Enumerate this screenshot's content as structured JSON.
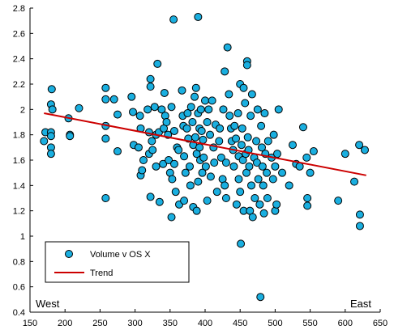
{
  "chart_data": {
    "type": "scatter",
    "x_range": [
      150,
      650
    ],
    "y_range": [
      0.4,
      2.8
    ],
    "x_ticks": [
      150,
      200,
      250,
      300,
      350,
      400,
      450,
      500,
      550,
      600,
      650
    ],
    "y_ticks": [
      0.4,
      0.6,
      0.8,
      1,
      1.2,
      1.4,
      1.6,
      1.8,
      2,
      2.2,
      2.4,
      2.6,
      2.8
    ],
    "grid": false,
    "legend_position": "bottom-left",
    "annotations": [
      {
        "text": "West",
        "position": "bottom-left"
      },
      {
        "text": "East",
        "position": "bottom-right"
      }
    ],
    "colors": {
      "points": "#1aafe0",
      "point_outline": "#000000",
      "trend": "#cc0000"
    },
    "series": [
      {
        "name": "Volume v OS X",
        "points": [
          [
            170,
            1.75
          ],
          [
            172,
            1.82
          ],
          [
            180,
            1.82
          ],
          [
            180,
            1.79
          ],
          [
            180,
            1.7
          ],
          [
            180,
            1.65
          ],
          [
            180,
            2.04
          ],
          [
            181,
            2.16
          ],
          [
            182,
            2.0
          ],
          [
            205,
            1.93
          ],
          [
            207,
            1.8
          ],
          [
            207,
            1.79
          ],
          [
            220,
            2.01
          ],
          [
            258,
            2.17
          ],
          [
            258,
            2.08
          ],
          [
            258,
            1.87
          ],
          [
            258,
            1.77
          ],
          [
            258,
            1.3
          ],
          [
            270,
            2.08
          ],
          [
            275,
            1.96
          ],
          [
            275,
            1.67
          ],
          [
            295,
            2.1
          ],
          [
            297,
            1.98
          ],
          [
            298,
            1.72
          ],
          [
            305,
            1.7
          ],
          [
            307,
            1.95
          ],
          [
            308,
            1.85
          ],
          [
            308,
            1.48
          ],
          [
            310,
            1.52
          ],
          [
            312,
            1.6
          ],
          [
            318,
            2.0
          ],
          [
            320,
            1.82
          ],
          [
            320,
            1.65
          ],
          [
            322,
            2.24
          ],
          [
            322,
            2.18
          ],
          [
            322,
            1.31
          ],
          [
            324,
            1.75
          ],
          [
            325,
            1.68
          ],
          [
            328,
            2.02
          ],
          [
            330,
            1.8
          ],
          [
            330,
            1.55
          ],
          [
            332,
            2.36
          ],
          [
            334,
            1.82
          ],
          [
            335,
            1.27
          ],
          [
            338,
            2.0
          ],
          [
            340,
            1.57
          ],
          [
            341,
            1.85
          ],
          [
            342,
            2.13
          ],
          [
            343,
            1.95
          ],
          [
            345,
            1.9
          ],
          [
            347,
            1.8
          ],
          [
            348,
            1.6
          ],
          [
            350,
            1.5
          ],
          [
            352,
            1.15
          ],
          [
            352,
            2.02
          ],
          [
            353,
            1.45
          ],
          [
            355,
            2.71
          ],
          [
            356,
            1.83
          ],
          [
            356,
            1.57
          ],
          [
            358,
            1.35
          ],
          [
            360,
            1.7
          ],
          [
            362,
            1.68
          ],
          [
            363,
            1.25
          ],
          [
            367,
            2.15
          ],
          [
            368,
            1.95
          ],
          [
            369,
            1.87
          ],
          [
            370,
            1.63
          ],
          [
            370,
            1.28
          ],
          [
            372,
            1.5
          ],
          [
            374,
            1.85
          ],
          [
            375,
            1.97
          ],
          [
            376,
            1.77
          ],
          [
            378,
            1.55
          ],
          [
            379,
            1.4
          ],
          [
            380,
            2.02
          ],
          [
            382,
            1.9
          ],
          [
            383,
            1.72
          ],
          [
            383,
            1.23
          ],
          [
            385,
            2.1
          ],
          [
            386,
            1.78
          ],
          [
            387,
            2.17
          ],
          [
            388,
            1.65
          ],
          [
            388,
            1.2
          ],
          [
            390,
            2.73
          ],
          [
            390,
            1.97
          ],
          [
            390,
            1.43
          ],
          [
            392,
            1.85
          ],
          [
            392,
            1.7
          ],
          [
            393,
            1.6
          ],
          [
            394,
            2.0
          ],
          [
            395,
            1.83
          ],
          [
            396,
            1.5
          ],
          [
            397,
            1.76
          ],
          [
            398,
            1.62
          ],
          [
            400,
            2.07
          ],
          [
            401,
            1.55
          ],
          [
            403,
            1.9
          ],
          [
            403,
            1.28
          ],
          [
            405,
            2.0
          ],
          [
            407,
            1.8
          ],
          [
            408,
            1.47
          ],
          [
            410,
            2.07
          ],
          [
            412,
            1.7
          ],
          [
            413,
            1.58
          ],
          [
            415,
            1.88
          ],
          [
            417,
            1.35
          ],
          [
            420,
            1.75
          ],
          [
            421,
            1.85
          ],
          [
            423,
            1.62
          ],
          [
            425,
            1.45
          ],
          [
            426,
            2.0
          ],
          [
            428,
            2.3
          ],
          [
            428,
            1.4
          ],
          [
            430,
            1.58
          ],
          [
            430,
            1.3
          ],
          [
            432,
            2.49
          ],
          [
            434,
            2.12
          ],
          [
            435,
            1.95
          ],
          [
            437,
            1.85
          ],
          [
            438,
            1.75
          ],
          [
            440,
            1.68
          ],
          [
            441,
            1.55
          ],
          [
            442,
            1.87
          ],
          [
            444,
            1.77
          ],
          [
            445,
            1.25
          ],
          [
            447,
            1.97
          ],
          [
            448,
            1.63
          ],
          [
            448,
            1.45
          ],
          [
            450,
            2.2
          ],
          [
            450,
            1.35
          ],
          [
            451,
            0.94
          ],
          [
            452,
            1.72
          ],
          [
            453,
            1.85
          ],
          [
            454,
            1.6
          ],
          [
            455,
            2.17
          ],
          [
            455,
            1.2
          ],
          [
            457,
            2.05
          ],
          [
            458,
            1.65
          ],
          [
            459,
            1.5
          ],
          [
            460,
            2.38
          ],
          [
            460,
            2.35
          ],
          [
            461,
            1.78
          ],
          [
            462,
            1.68
          ],
          [
            463,
            1.55
          ],
          [
            464,
            1.2
          ],
          [
            465,
            1.95
          ],
          [
            466,
            1.4
          ],
          [
            467,
            2.12
          ],
          [
            468,
            1.15
          ],
          [
            470,
            1.62
          ],
          [
            471,
            1.3
          ],
          [
            473,
            1.75
          ],
          [
            474,
            1.58
          ],
          [
            475,
            2.0
          ],
          [
            476,
            1.45
          ],
          [
            478,
            1.25
          ],
          [
            479,
            0.52
          ],
          [
            480,
            1.87
          ],
          [
            481,
            1.7
          ],
          [
            482,
            1.55
          ],
          [
            483,
            1.4
          ],
          [
            484,
            1.18
          ],
          [
            485,
            1.97
          ],
          [
            486,
            1.65
          ],
          [
            488,
            1.5
          ],
          [
            489,
            1.3
          ],
          [
            490,
            1.75
          ],
          [
            495,
            1.62
          ],
          [
            497,
            1.45
          ],
          [
            498,
            1.8
          ],
          [
            500,
            1.2
          ],
          [
            500,
            1.55
          ],
          [
            502,
            1.25
          ],
          [
            503,
            1.65
          ],
          [
            505,
            2.0
          ],
          [
            510,
            1.5
          ],
          [
            520,
            1.4
          ],
          [
            525,
            1.72
          ],
          [
            530,
            1.57
          ],
          [
            535,
            1.55
          ],
          [
            540,
            1.86
          ],
          [
            545,
            1.62
          ],
          [
            546,
            1.3
          ],
          [
            546,
            1.24
          ],
          [
            550,
            1.5
          ],
          [
            555,
            1.67
          ],
          [
            590,
            1.28
          ],
          [
            600,
            1.65
          ],
          [
            613,
            1.43
          ],
          [
            620,
            1.72
          ],
          [
            621,
            1.17
          ],
          [
            621,
            1.08
          ],
          [
            628,
            1.68
          ]
        ]
      },
      {
        "name": "Trend",
        "type": "line",
        "points": [
          [
            170,
            1.97
          ],
          [
            630,
            1.48
          ]
        ]
      }
    ]
  }
}
